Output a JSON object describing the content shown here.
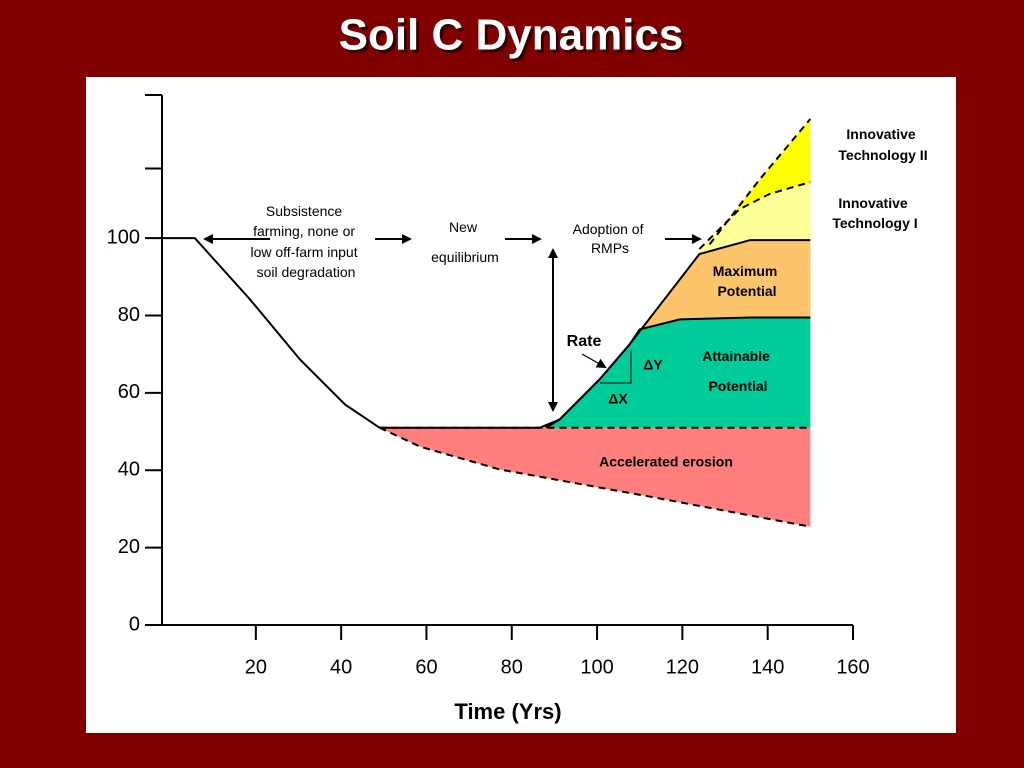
{
  "chart_data": {
    "type": "line",
    "title": "Soil C Dynamics",
    "xlabel": "Time (Yrs)",
    "xlim": [
      -2,
      160
    ],
    "xticks": [
      20,
      40,
      60,
      80,
      100,
      120,
      140,
      160
    ],
    "ylim": [
      0,
      137
    ],
    "yticks": [
      0,
      20,
      40,
      60,
      80,
      100
    ],
    "yticks_unlabeled": [
      118,
      137
    ],
    "fill_base": 51,
    "series": [
      {
        "color": "#000000",
        "dashed": true,
        "fill": "#ffff00",
        "x": [
          126.4,
          138.2,
          150
        ],
        "values": [
          98.4,
          115.3,
          130.8
        ]
      },
      {
        "color": "#000000",
        "dashed": true,
        "fill": "#ffff99",
        "x": [
          124,
          133.4,
          140.4,
          150
        ],
        "values": [
          97.2,
          107.5,
          111.4,
          114.5
        ]
      },
      {
        "color": "#000000",
        "dashed": false,
        "fill": "#fdc56b",
        "x": [
          49,
          86.6,
          91.2,
          100.6,
          107.6,
          124,
          135.9,
          150
        ],
        "values": [
          51,
          51,
          53.1,
          63.5,
          72.5,
          95.9,
          99.5,
          99.5
        ]
      },
      {
        "color": "#000000",
        "dashed": false,
        "fill": "#00cc99",
        "x": [
          88,
          91.2,
          100.6,
          107.6,
          110,
          119.4,
          136,
          150
        ],
        "values": [
          51,
          53.1,
          63.5,
          72.5,
          76.4,
          79,
          79.5,
          79.5
        ]
      },
      {
        "color": "#000000",
        "dashed": true,
        "fill": "#ff7f7f",
        "x": [
          49,
          58.5,
          77.2,
          112.3,
          150
        ],
        "values": [
          51,
          46.1,
          40.2,
          33.2,
          25.4
        ]
      },
      {
        "color": "#000000",
        "dashed": true,
        "fill": null,
        "x": [
          49,
          150
        ],
        "values": [
          51,
          51
        ]
      },
      {
        "color": "#000000",
        "dashed": false,
        "fill": null,
        "x": [
          -2,
          5.7,
          18.6,
          30.3,
          40.9,
          49
        ],
        "values": [
          100,
          100,
          84.2,
          68.7,
          57,
          51
        ]
      }
    ],
    "annotations": {
      "subsistence": [
        "Subsistence",
        "farming, none or",
        "low off-farm input",
        "soil degradation"
      ],
      "new_equilibrium": [
        "New",
        "equilibrium"
      ],
      "adoption": [
        "Adoption of",
        "RMPs"
      ],
      "rate": "Rate",
      "delta_y": "ΔY",
      "delta_x": "ΔX",
      "maximum_potential": [
        "Maximum",
        "Potential"
      ],
      "attainable_potential": [
        "Attainable",
        "Potential"
      ],
      "accelerated_erosion": "Accelerated erosion",
      "tech_2": [
        "Innovative",
        "Technology II"
      ],
      "tech_1": [
        "Innovative",
        "Technology I"
      ]
    }
  }
}
